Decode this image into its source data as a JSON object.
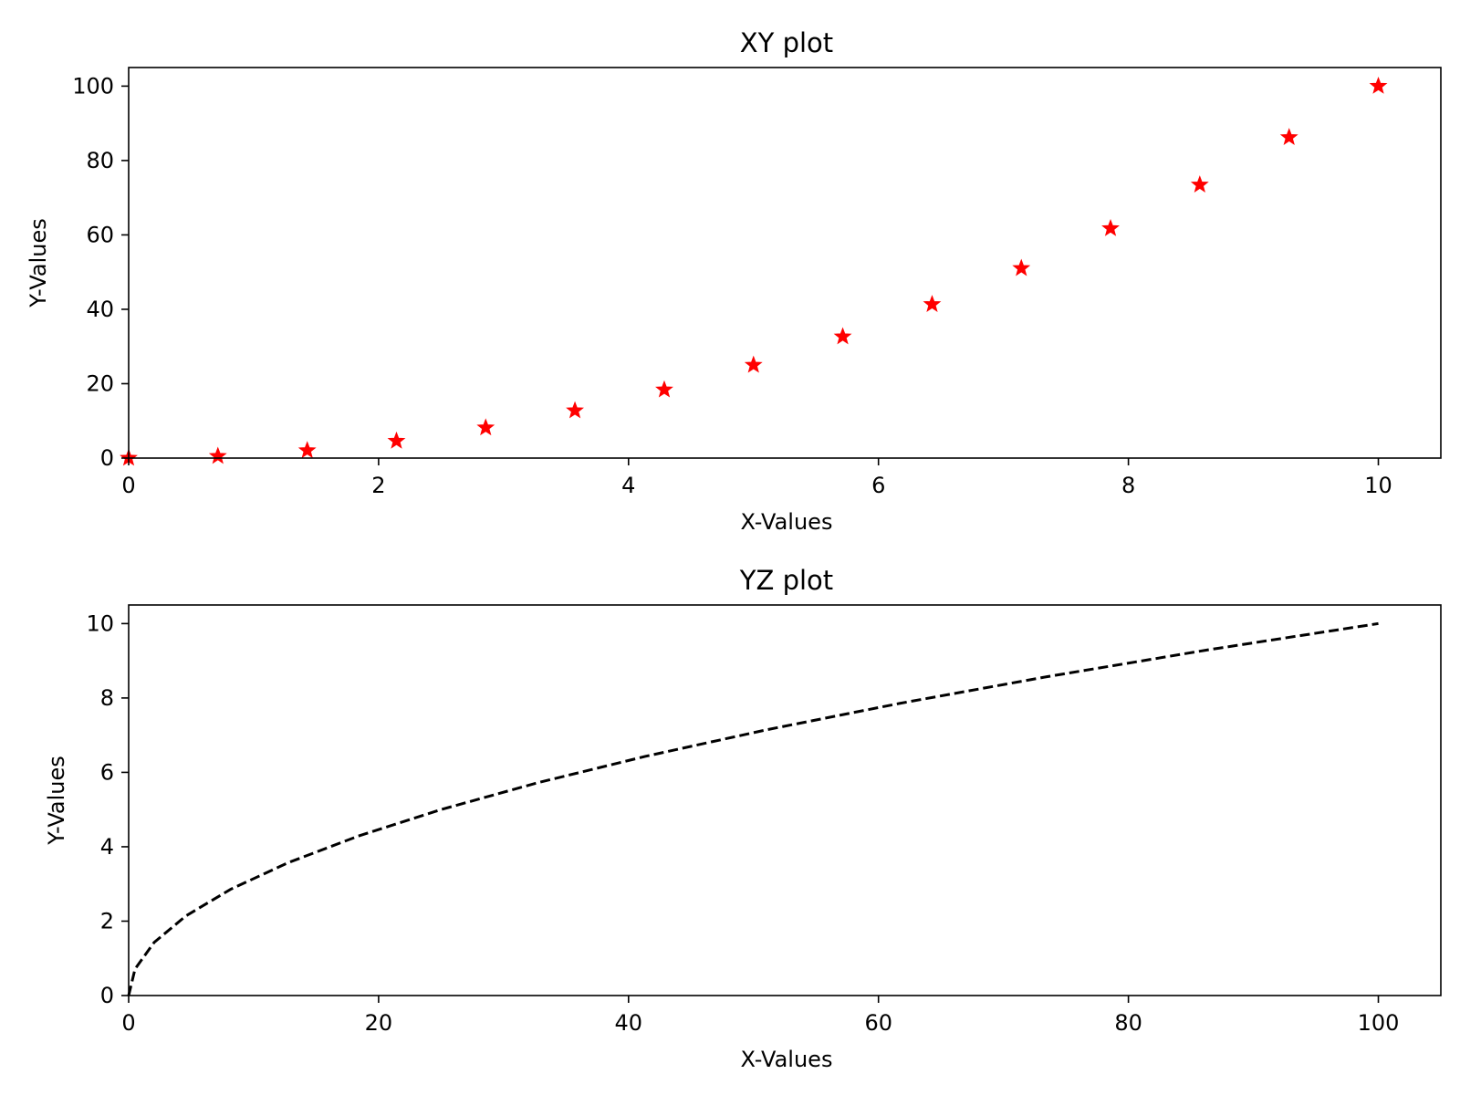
{
  "chart_data": [
    {
      "type": "scatter",
      "title": "XY plot",
      "xlabel": "X-Values",
      "ylabel": "Y-Values",
      "xlim": [
        0,
        10.5
      ],
      "ylim": [
        0,
        105
      ],
      "xticks": [
        "0",
        "2",
        "4",
        "6",
        "8",
        "10"
      ],
      "yticks": [
        "0",
        "20",
        "40",
        "60",
        "80",
        "100"
      ],
      "grid": false,
      "series": [
        {
          "marker": "star",
          "color": "#ff0000",
          "x": [
            0,
            0.714,
            1.429,
            2.143,
            2.857,
            3.571,
            4.286,
            5.0,
            5.714,
            6.429,
            7.143,
            7.857,
            8.571,
            9.286,
            10.0
          ],
          "y": [
            0,
            0.51,
            2.04,
            4.59,
            8.16,
            12.76,
            18.37,
            25.0,
            32.65,
            41.33,
            51.02,
            61.73,
            73.47,
            86.22,
            100.0
          ]
        }
      ]
    },
    {
      "type": "line",
      "title": "YZ plot",
      "xlabel": "X-Values",
      "ylabel": "Y-Values",
      "xlim": [
        0,
        105
      ],
      "ylim": [
        0,
        10.5
      ],
      "xticks": [
        "0",
        "20",
        "40",
        "60",
        "80",
        "100"
      ],
      "yticks": [
        "0",
        "2",
        "4",
        "6",
        "8",
        "10"
      ],
      "grid": false,
      "series": [
        {
          "linestyle": "dashed",
          "color": "#000000",
          "x": [
            0,
            0.51,
            2.04,
            4.59,
            8.16,
            12.76,
            18.37,
            25.0,
            32.65,
            41.33,
            51.02,
            61.73,
            73.47,
            86.22,
            100.0
          ],
          "y": [
            0,
            0.714,
            1.429,
            2.143,
            2.857,
            3.571,
            4.286,
            5.0,
            5.714,
            6.429,
            7.143,
            7.857,
            8.571,
            9.286,
            10.0
          ]
        }
      ]
    }
  ]
}
